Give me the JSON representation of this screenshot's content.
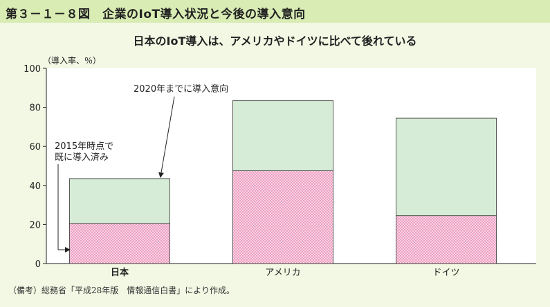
{
  "figure": {
    "title": "第３－１－８図　企業のIoT導入状況と今後の導入意向",
    "note": "（備考）総務省「平成28年版　情報通信白書」により作成。"
  },
  "chart_data": {
    "type": "bar",
    "stacked": true,
    "title": "日本のIoT導入は、アメリカやドイツに比べて後れている",
    "ylabel": "（導入率、％）",
    "xlabel": "",
    "ylim": [
      0,
      100
    ],
    "yticks": [
      0,
      20,
      40,
      60,
      80,
      100
    ],
    "categories": [
      "日本",
      "アメリカ",
      "ドイツ"
    ],
    "series": [
      {
        "name": "2015年時点で既に導入済み",
        "values": [
          20.5,
          47.5,
          24.5
        ],
        "color": "#f7d3e4",
        "dot_color": "#e0508c"
      },
      {
        "name": "2020年までに導入意向",
        "values": [
          23,
          36,
          50
        ],
        "color": "#d6ecd6"
      }
    ],
    "annotations": [
      {
        "text": "2020年までに導入意向",
        "target": "日本-series-2"
      },
      {
        "lines": [
          "2015年時点で",
          "既に導入済み"
        ],
        "target": "日本-series-1"
      }
    ],
    "grid": false,
    "legend": "none"
  }
}
